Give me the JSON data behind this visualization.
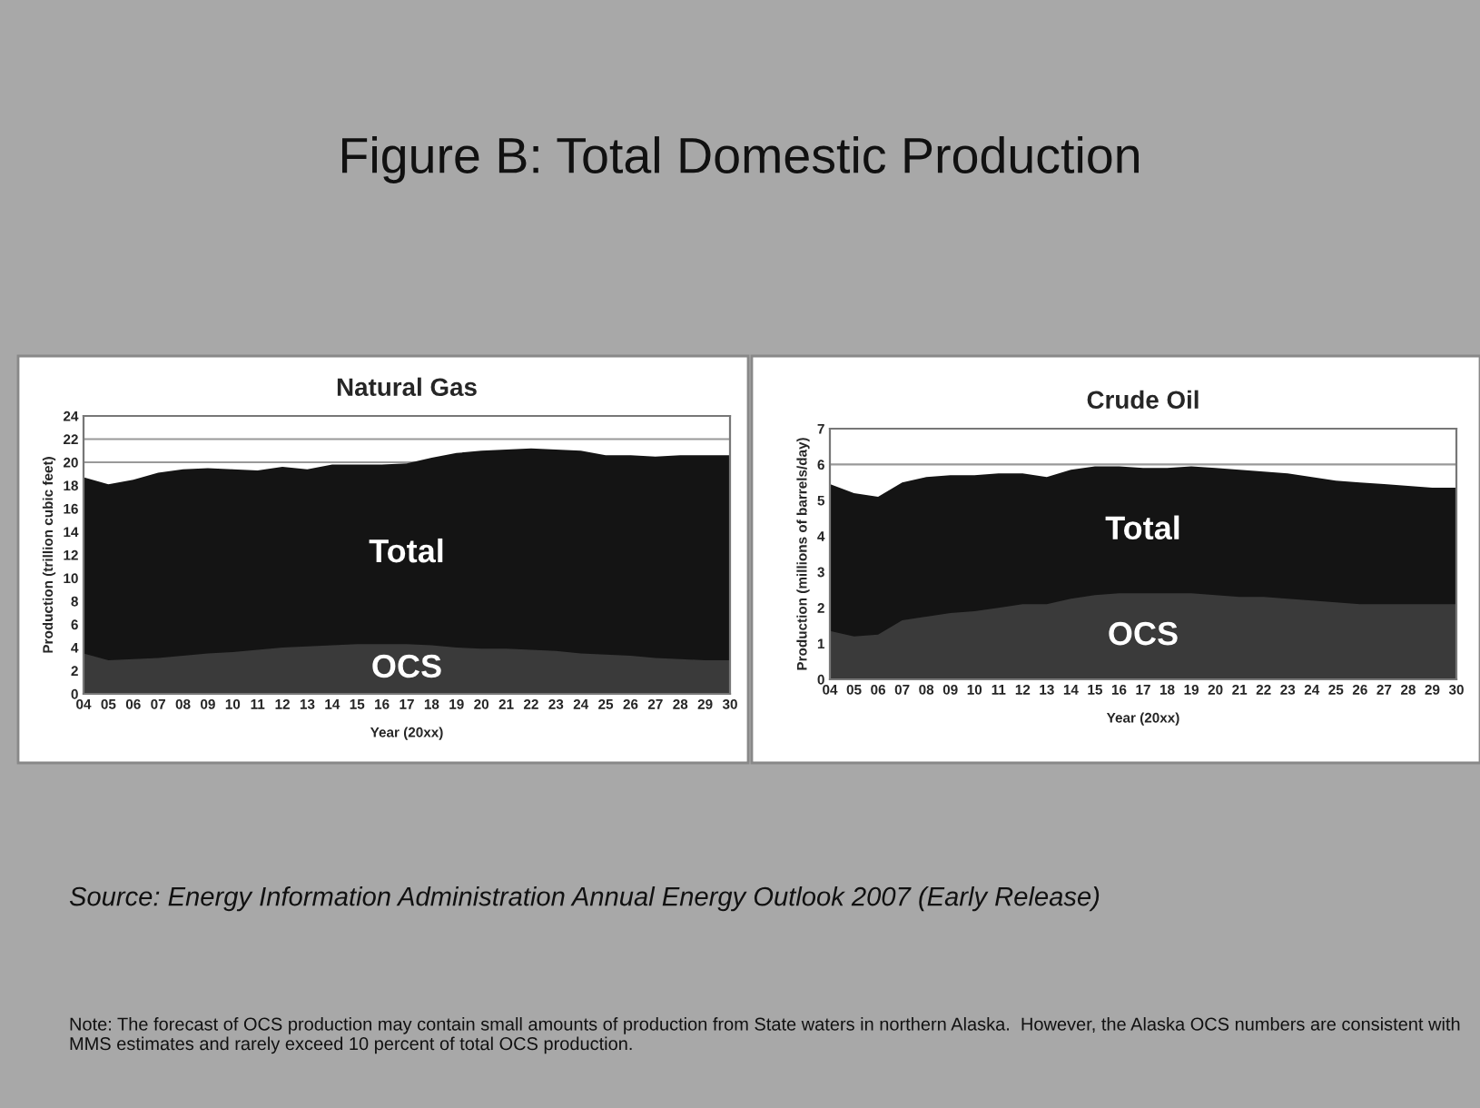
{
  "chart_data": [
    {
      "type": "other",
      "title": "Figure B: Total Domestic Production",
      "annotations": [
        "Source: Energy Information Administration Annual Energy Outlook 2007 (Early Release)",
        "Note: The forecast of OCS production may contain small amounts of production from State waters in northern Alaska.  However, the Alaska OCS numbers are consistent with MMS estimates and rarely exceed 10 percent of total OCS production."
      ]
    },
    {
      "type": "area",
      "title": "Natural Gas",
      "xlabel": "Year (20xx)",
      "ylabel": "Production (trillion cubic feet)",
      "categories": [
        "04",
        "05",
        "06",
        "07",
        "08",
        "09",
        "10",
        "11",
        "12",
        "13",
        "14",
        "15",
        "16",
        "17",
        "18",
        "19",
        "20",
        "21",
        "22",
        "23",
        "24",
        "25",
        "26",
        "27",
        "28",
        "29",
        "30"
      ],
      "ylim": [
        0,
        24
      ],
      "yticks": [
        0,
        2,
        4,
        6,
        8,
        10,
        12,
        14,
        16,
        18,
        20,
        22,
        24
      ],
      "grid": "y",
      "series": [
        {
          "name": "Total",
          "color": "#141414",
          "values": [
            18.7,
            18.1,
            18.5,
            19.1,
            19.4,
            19.5,
            19.4,
            19.3,
            19.6,
            19.4,
            19.8,
            19.8,
            19.8,
            19.9,
            20.4,
            20.8,
            21.0,
            21.1,
            21.2,
            21.1,
            21.0,
            20.6,
            20.6,
            20.5,
            20.6,
            20.6,
            20.6
          ]
        },
        {
          "name": "OCS",
          "color": "#3a3a3a",
          "values": [
            3.5,
            2.9,
            3.0,
            3.1,
            3.3,
            3.5,
            3.6,
            3.8,
            4.0,
            4.1,
            4.2,
            4.3,
            4.3,
            4.3,
            4.2,
            4.0,
            3.9,
            3.9,
            3.8,
            3.7,
            3.5,
            3.4,
            3.3,
            3.1,
            3.0,
            2.9,
            2.9
          ]
        }
      ]
    },
    {
      "type": "area",
      "title": "Crude Oil",
      "xlabel": "Year (20xx)",
      "ylabel": "Production (millions of barrels/day)",
      "categories": [
        "04",
        "05",
        "06",
        "07",
        "08",
        "09",
        "10",
        "11",
        "12",
        "13",
        "14",
        "15",
        "16",
        "17",
        "18",
        "19",
        "20",
        "21",
        "22",
        "23",
        "24",
        "25",
        "26",
        "27",
        "28",
        "29",
        "30"
      ],
      "ylim": [
        0,
        7
      ],
      "yticks": [
        0,
        1,
        2,
        3,
        4,
        5,
        6,
        7
      ],
      "grid": "y",
      "series": [
        {
          "name": "Total",
          "color": "#141414",
          "values": [
            5.45,
            5.2,
            5.1,
            5.5,
            5.65,
            5.7,
            5.7,
            5.75,
            5.75,
            5.65,
            5.85,
            5.95,
            5.95,
            5.9,
            5.9,
            5.95,
            5.9,
            5.85,
            5.8,
            5.75,
            5.65,
            5.55,
            5.5,
            5.45,
            5.4,
            5.35,
            5.35
          ]
        },
        {
          "name": "OCS",
          "color": "#3a3a3a",
          "values": [
            1.35,
            1.2,
            1.25,
            1.65,
            1.75,
            1.85,
            1.9,
            2.0,
            2.1,
            2.1,
            2.25,
            2.35,
            2.4,
            2.4,
            2.4,
            2.4,
            2.35,
            2.3,
            2.3,
            2.25,
            2.2,
            2.15,
            2.1,
            2.1,
            2.1,
            2.1,
            2.1
          ]
        }
      ]
    }
  ]
}
